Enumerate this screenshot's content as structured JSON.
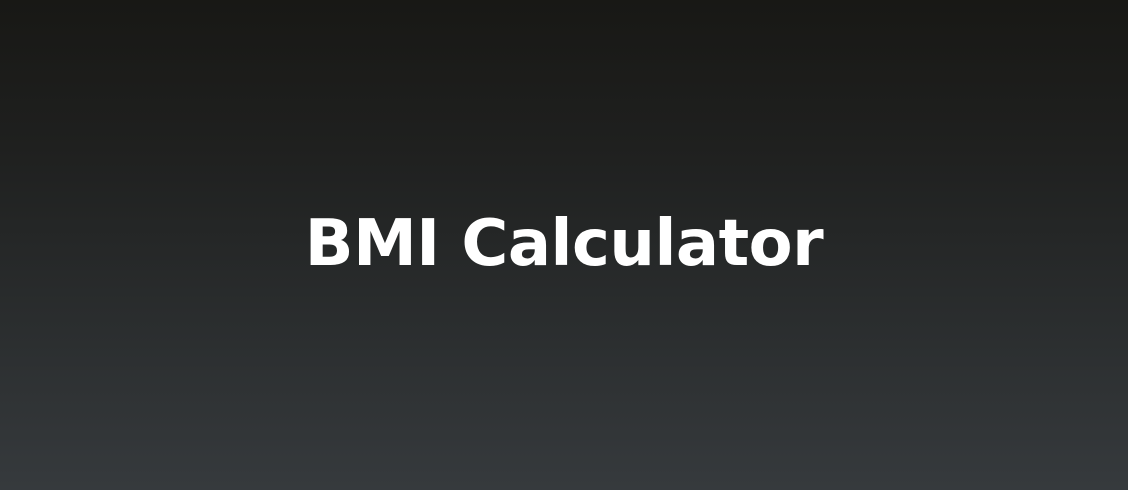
{
  "hero": {
    "title": "BMI Calculator"
  },
  "colors": {
    "background_top": "#181815",
    "background_bottom": "#363a3d",
    "title_text": "#ffffff"
  }
}
